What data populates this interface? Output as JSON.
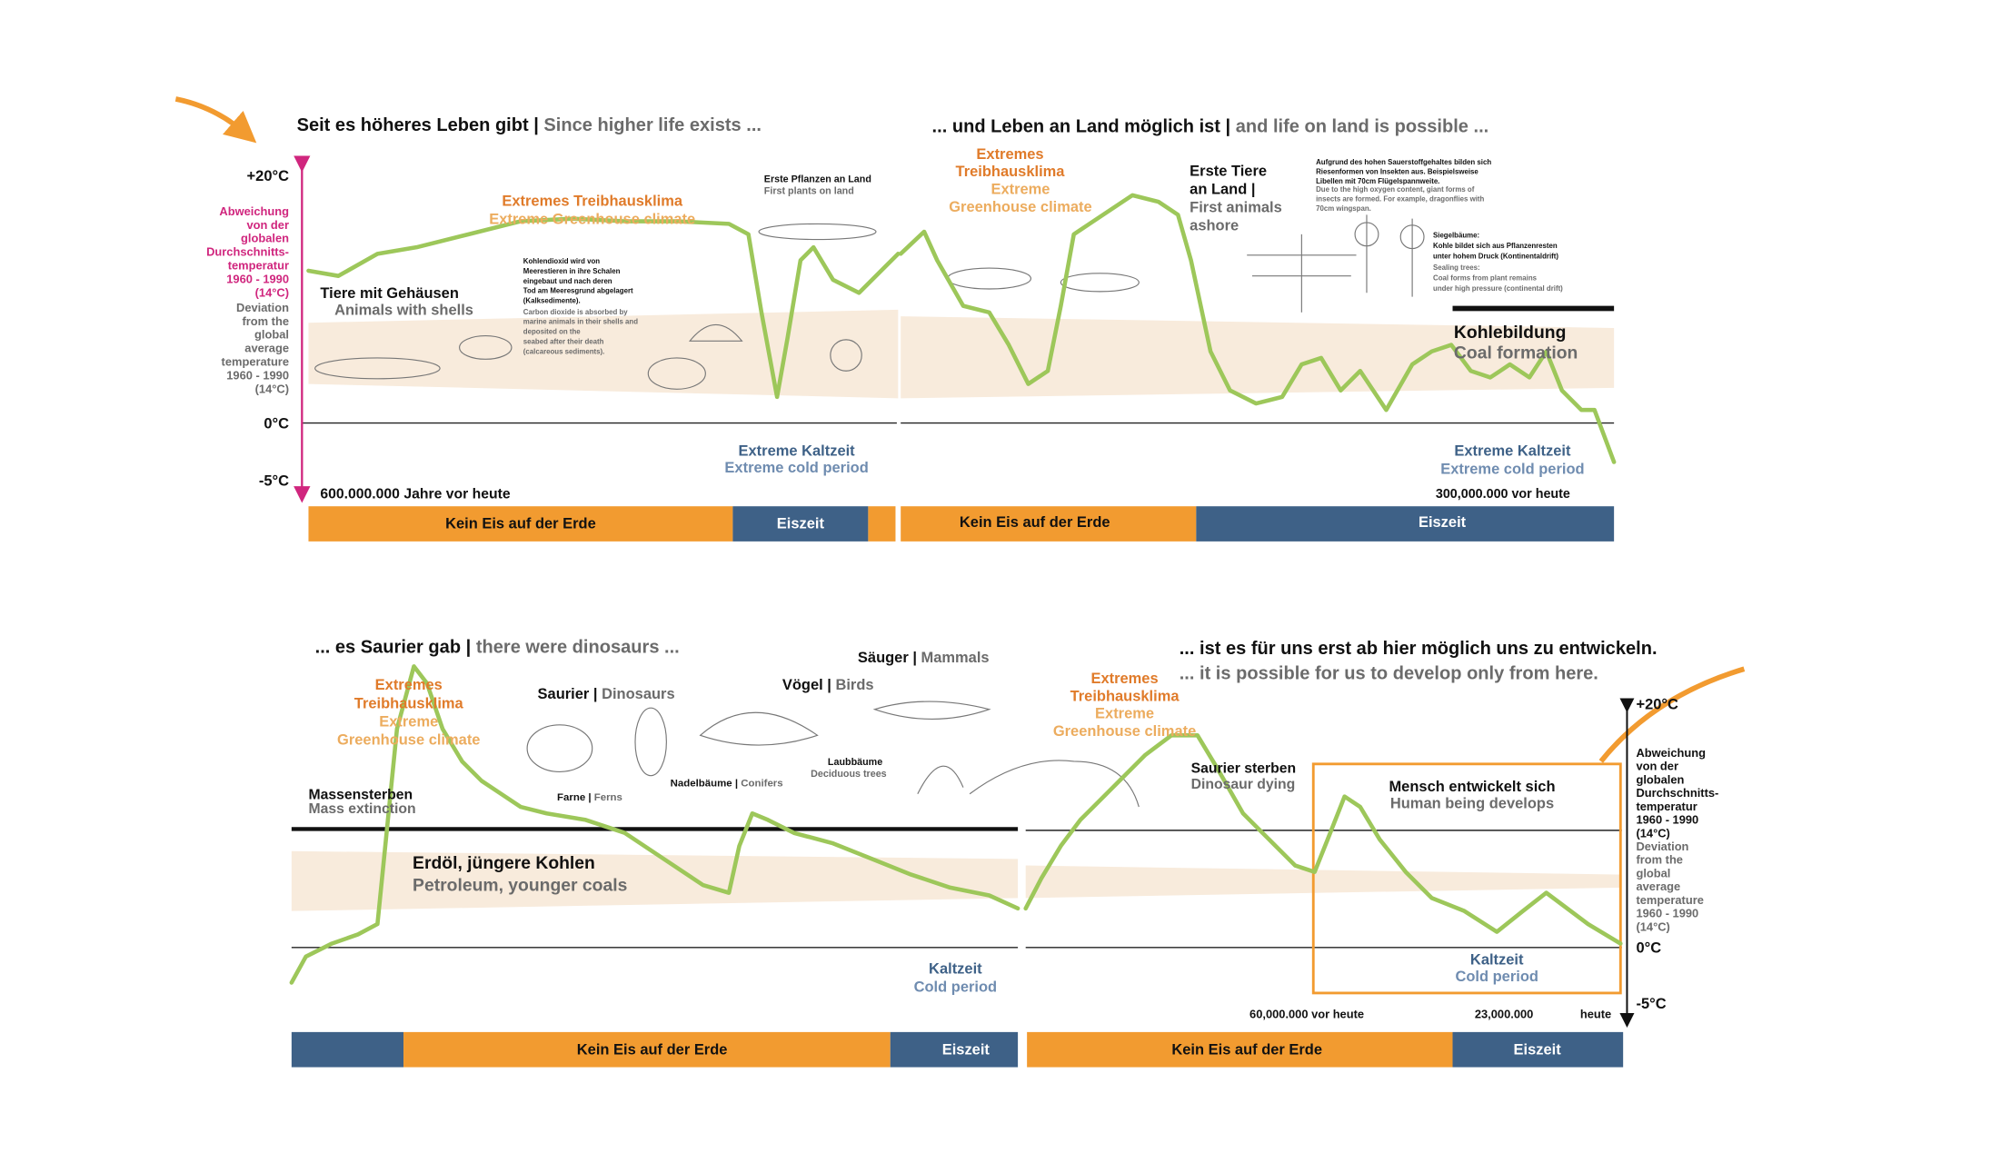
{
  "top_left": {
    "heading_de": "Seit es höheres Leben gibt |",
    "heading_en": " Since higher life exists ...",
    "greenhouse_de": "Extremes Treibhausklima",
    "greenhouse_en": "Extreme Greenhouse climate",
    "shells_de": "Tiere mit Gehäusen",
    "shells_en": "Animals with shells",
    "co2_de": [
      "Kohlendioxid wird von",
      "Meerestieren in ihre Schalen",
      "eingebaut und nach deren",
      "Tod am Meeresgrund abgelagert",
      "(Kalksedimente)."
    ],
    "co2_en": [
      "Carbon dioxide is absorbed by",
      "marine animals in their shells and",
      "deposited on the",
      "seabed after their death",
      "(calcareous sediments)."
    ],
    "plants_de": "Erste Pflanzen an Land",
    "plants_en": "First plants on land",
    "cold_de": "Extreme Kaltzeit",
    "cold_en": "Extreme cold period",
    "time": "600.000.000 Jahre vor heute",
    "bar": [
      "Kein Eis auf der Erde",
      "Eiszeit"
    ]
  },
  "top_right": {
    "heading_de": "... und Leben an Land möglich ist |",
    "heading_en": " and life on land is possible ...",
    "greenhouse_de": [
      "Extremes",
      "Treibhausklima"
    ],
    "greenhouse_en": [
      "Extreme",
      "Greenhouse climate"
    ],
    "animals_de": [
      "Erste Tiere",
      "an Land |"
    ],
    "animals_en": [
      "First animals",
      "ashore"
    ],
    "insects_de": [
      "Aufgrund des hohen Sauerstoffgehaltes bilden sich",
      "Riesenformen von Insekten aus. Beispielsweise",
      "Libellen mit 70cm Flügelspannweite."
    ],
    "insects_en": [
      "Due to the high oxygen content, giant forms of",
      "insects are formed. For example, dragonflies with",
      "70cm wingspan."
    ],
    "trees_de": [
      "Siegelbäume:",
      "Kohle bildet sich aus Pflanzenresten",
      "unter hohem Druck (Kontinentaldrift)"
    ],
    "trees_en": [
      "Sealing trees:",
      "Coal forms from plant remains",
      "under high pressure (continental drift)"
    ],
    "coal_de": "Kohlebildung",
    "coal_en": "Coal formation",
    "cold_de": "Extreme Kaltzeit",
    "cold_en": "Extreme cold period",
    "time": "300,000.000 vor heute",
    "bar": [
      "Kein Eis auf der Erde",
      "Eiszeit"
    ]
  },
  "bottom_left": {
    "heading_de": "... es Saurier gab |",
    "heading_en": " there were dinosaurs ...",
    "greenhouse_de": [
      "Extremes",
      "Treibhausklima"
    ],
    "greenhouse_en": [
      "Extreme",
      "Greenhouse climate"
    ],
    "dinos_de": "Saurier |",
    "dinos_en": " Dinosaurs",
    "birds_de": "Vögel |",
    "birds_en": " Birds",
    "mammals_de": "Säuger |",
    "mammals_en": " Mammals",
    "ferns_de": "Farne |",
    "ferns_en": " Ferns",
    "conifers_de": "Nadelbäume |",
    "conifers_en": " Conifers",
    "deciduous_de": "Laubbäume",
    "deciduous_en": "Deciduous trees",
    "extinction_de": "Massensterben",
    "extinction_en": "Mass extinction",
    "oil_de": "Erdöl, jüngere Kohlen",
    "oil_en": "Petroleum, younger coals",
    "cold_de": "Kaltzeit",
    "cold_en": "Cold period",
    "bar": [
      "Kein Eis auf der Erde",
      "Eiszeit"
    ]
  },
  "bottom_right": {
    "heading_de": "... ist es für uns erst ab hier möglich uns zu entwickeln.",
    "heading_en": "... it is possible for us to develop only from here.",
    "greenhouse_de": [
      "Extremes",
      "Treibhausklima"
    ],
    "greenhouse_en": [
      "Extreme",
      "Greenhouse climate"
    ],
    "dying_de": "Saurier sterben",
    "dying_en": "Dinosaur dying",
    "human_de": "Mensch entwickelt sich",
    "human_en": "Human being develops",
    "cold_de": "Kaltzeit",
    "cold_en": "Cold period",
    "times": [
      "60,000.000 vor heute",
      "23,000.000",
      "heute"
    ],
    "bar": [
      "Kein Eis auf der Erde",
      "Eiszeit"
    ]
  },
  "axis_left": {
    "top": "+20°C",
    "zero": "0°C",
    "bottom": "-5°C",
    "label_de": [
      "Abweichung",
      "von der",
      "globalen",
      "Durchschnitts-",
      "temperatur",
      "1960 - 1990",
      "(14°C)"
    ],
    "label_en": [
      "Deviation",
      "from the",
      "global",
      "average",
      "temperature",
      "1960 - 1990",
      "(14°C)"
    ]
  },
  "axis_right": {
    "top": "+20°C",
    "zero": "0°C",
    "bottom": "-5°C",
    "label_de": [
      "Abweichung",
      "von der",
      "globalen",
      "Durchschnitts-",
      "temperatur",
      "1960 - 1990",
      "(14°C)"
    ],
    "label_en": [
      "Deviation",
      "from the",
      "global",
      "average",
      "temperature",
      "1960 - 1990",
      "(14°C)"
    ]
  }
}
